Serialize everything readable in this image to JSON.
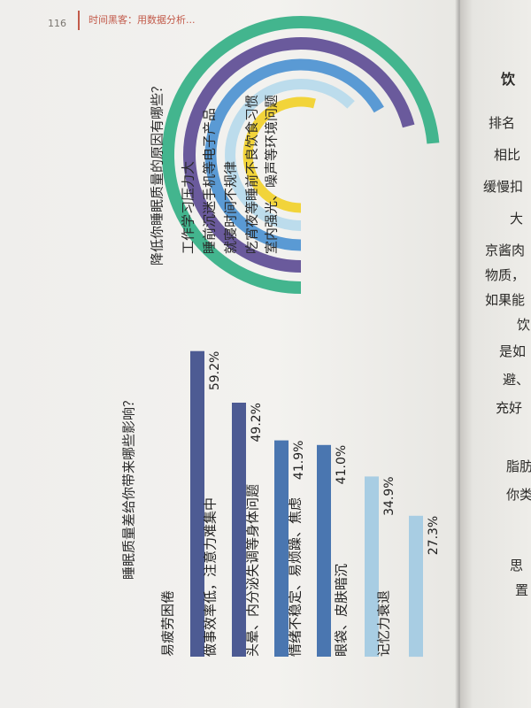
{
  "header": {
    "page_number": "116",
    "running_title": "时间黑客：用数据分析..."
  },
  "right_page": {
    "fragments": [
      "饮",
      "排名",
      "相比",
      "缓慢扣",
      "大",
      "京酱肉",
      "物质，",
      "如果能",
      "饮",
      "是如",
      "避、",
      "充好",
      "脂肪",
      "你类",
      "思",
      "置"
    ]
  },
  "chart_data": [
    {
      "type": "radial-bar",
      "title": "降低你睡眠质量的原因有哪些？",
      "categories": [
        "工作学习压力大",
        "睡前沉迷手机等电子产品",
        "就寝时间不规律",
        "吃宵夜等睡前不良饮食习惯",
        "室内强光、噪声等环境问题"
      ],
      "values": [
        null,
        null,
        null,
        null,
        null
      ],
      "colors": [
        "#43b58e",
        "#6a5a9c",
        "#5a9ad4",
        "#bcdcec",
        "#f2d43a"
      ]
    },
    {
      "type": "bar",
      "title": "睡眠质量差给你带来哪些影响？",
      "categories": [
        "易疲劳困倦",
        "做事效率低，注意力难集中",
        "头晕、内分泌失调等身体问题",
        "情绪不稳定、易烦躁、焦虑",
        "眼袋、皮肤暗沉",
        "记忆力衰退"
      ],
      "values": [
        59.2,
        49.2,
        41.9,
        41.0,
        34.9,
        27.3
      ],
      "value_labels": [
        "59.2%",
        "49.2%",
        "41.9%",
        "41.0%",
        "34.9%",
        "27.3%"
      ],
      "colors": [
        "#4d5b93",
        "#4d5b93",
        "#4a76b0",
        "#4a76b0",
        "#a8cde3",
        "#a8cde3"
      ],
      "unit": "%"
    }
  ]
}
